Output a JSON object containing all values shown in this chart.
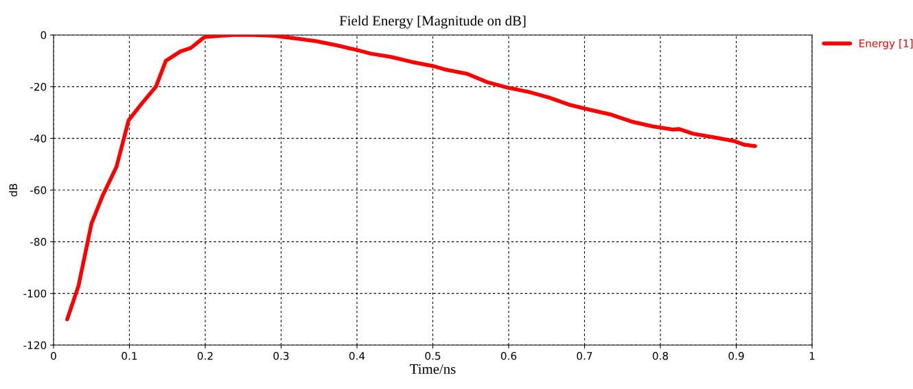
{
  "chart_data": {
    "type": "line",
    "title": "Field Energy [Magnitude on dB]",
    "xlabel": "Time/ns",
    "ylabel": "dB",
    "x": [
      0.018,
      0.033,
      0.05,
      0.065,
      0.083,
      0.099,
      0.115,
      0.135,
      0.148,
      0.167,
      0.181,
      0.199,
      0.219,
      0.237,
      0.264,
      0.291,
      0.319,
      0.346,
      0.373,
      0.4,
      0.418,
      0.445,
      0.472,
      0.5,
      0.518,
      0.545,
      0.572,
      0.599,
      0.626,
      0.653,
      0.68,
      0.708,
      0.735,
      0.762,
      0.789,
      0.816,
      0.825,
      0.843,
      0.871,
      0.898,
      0.911,
      0.925
    ],
    "series": [
      {
        "name": "Energy [1]",
        "color": "#ff0000",
        "values": [
          -110,
          -97,
          -73,
          -62,
          -51,
          -33,
          -27,
          -20,
          -10,
          -6.4,
          -5,
          -0.8,
          -0.3,
          0,
          0,
          -0.3,
          -1.3,
          -2.4,
          -4,
          -5.8,
          -7.2,
          -8.5,
          -10.4,
          -12,
          -13.5,
          -15,
          -18.3,
          -20.4,
          -22,
          -24.2,
          -27,
          -29,
          -30.8,
          -33.5,
          -35.3,
          -36.6,
          -36.4,
          -38.2,
          -39.6,
          -41.1,
          -42.5,
          -43
        ]
      }
    ],
    "xlim": [
      0,
      1
    ],
    "ylim": [
      -120,
      0
    ],
    "xticks": [
      0,
      0.1,
      0.2,
      0.3,
      0.4,
      0.5,
      0.6,
      0.7,
      0.8,
      0.9,
      1
    ],
    "yticks": [
      -120,
      -100,
      -80,
      -60,
      -40,
      -20,
      0
    ],
    "grid": true,
    "legend": "top right",
    "line_style": "solid",
    "marker": "none"
  }
}
